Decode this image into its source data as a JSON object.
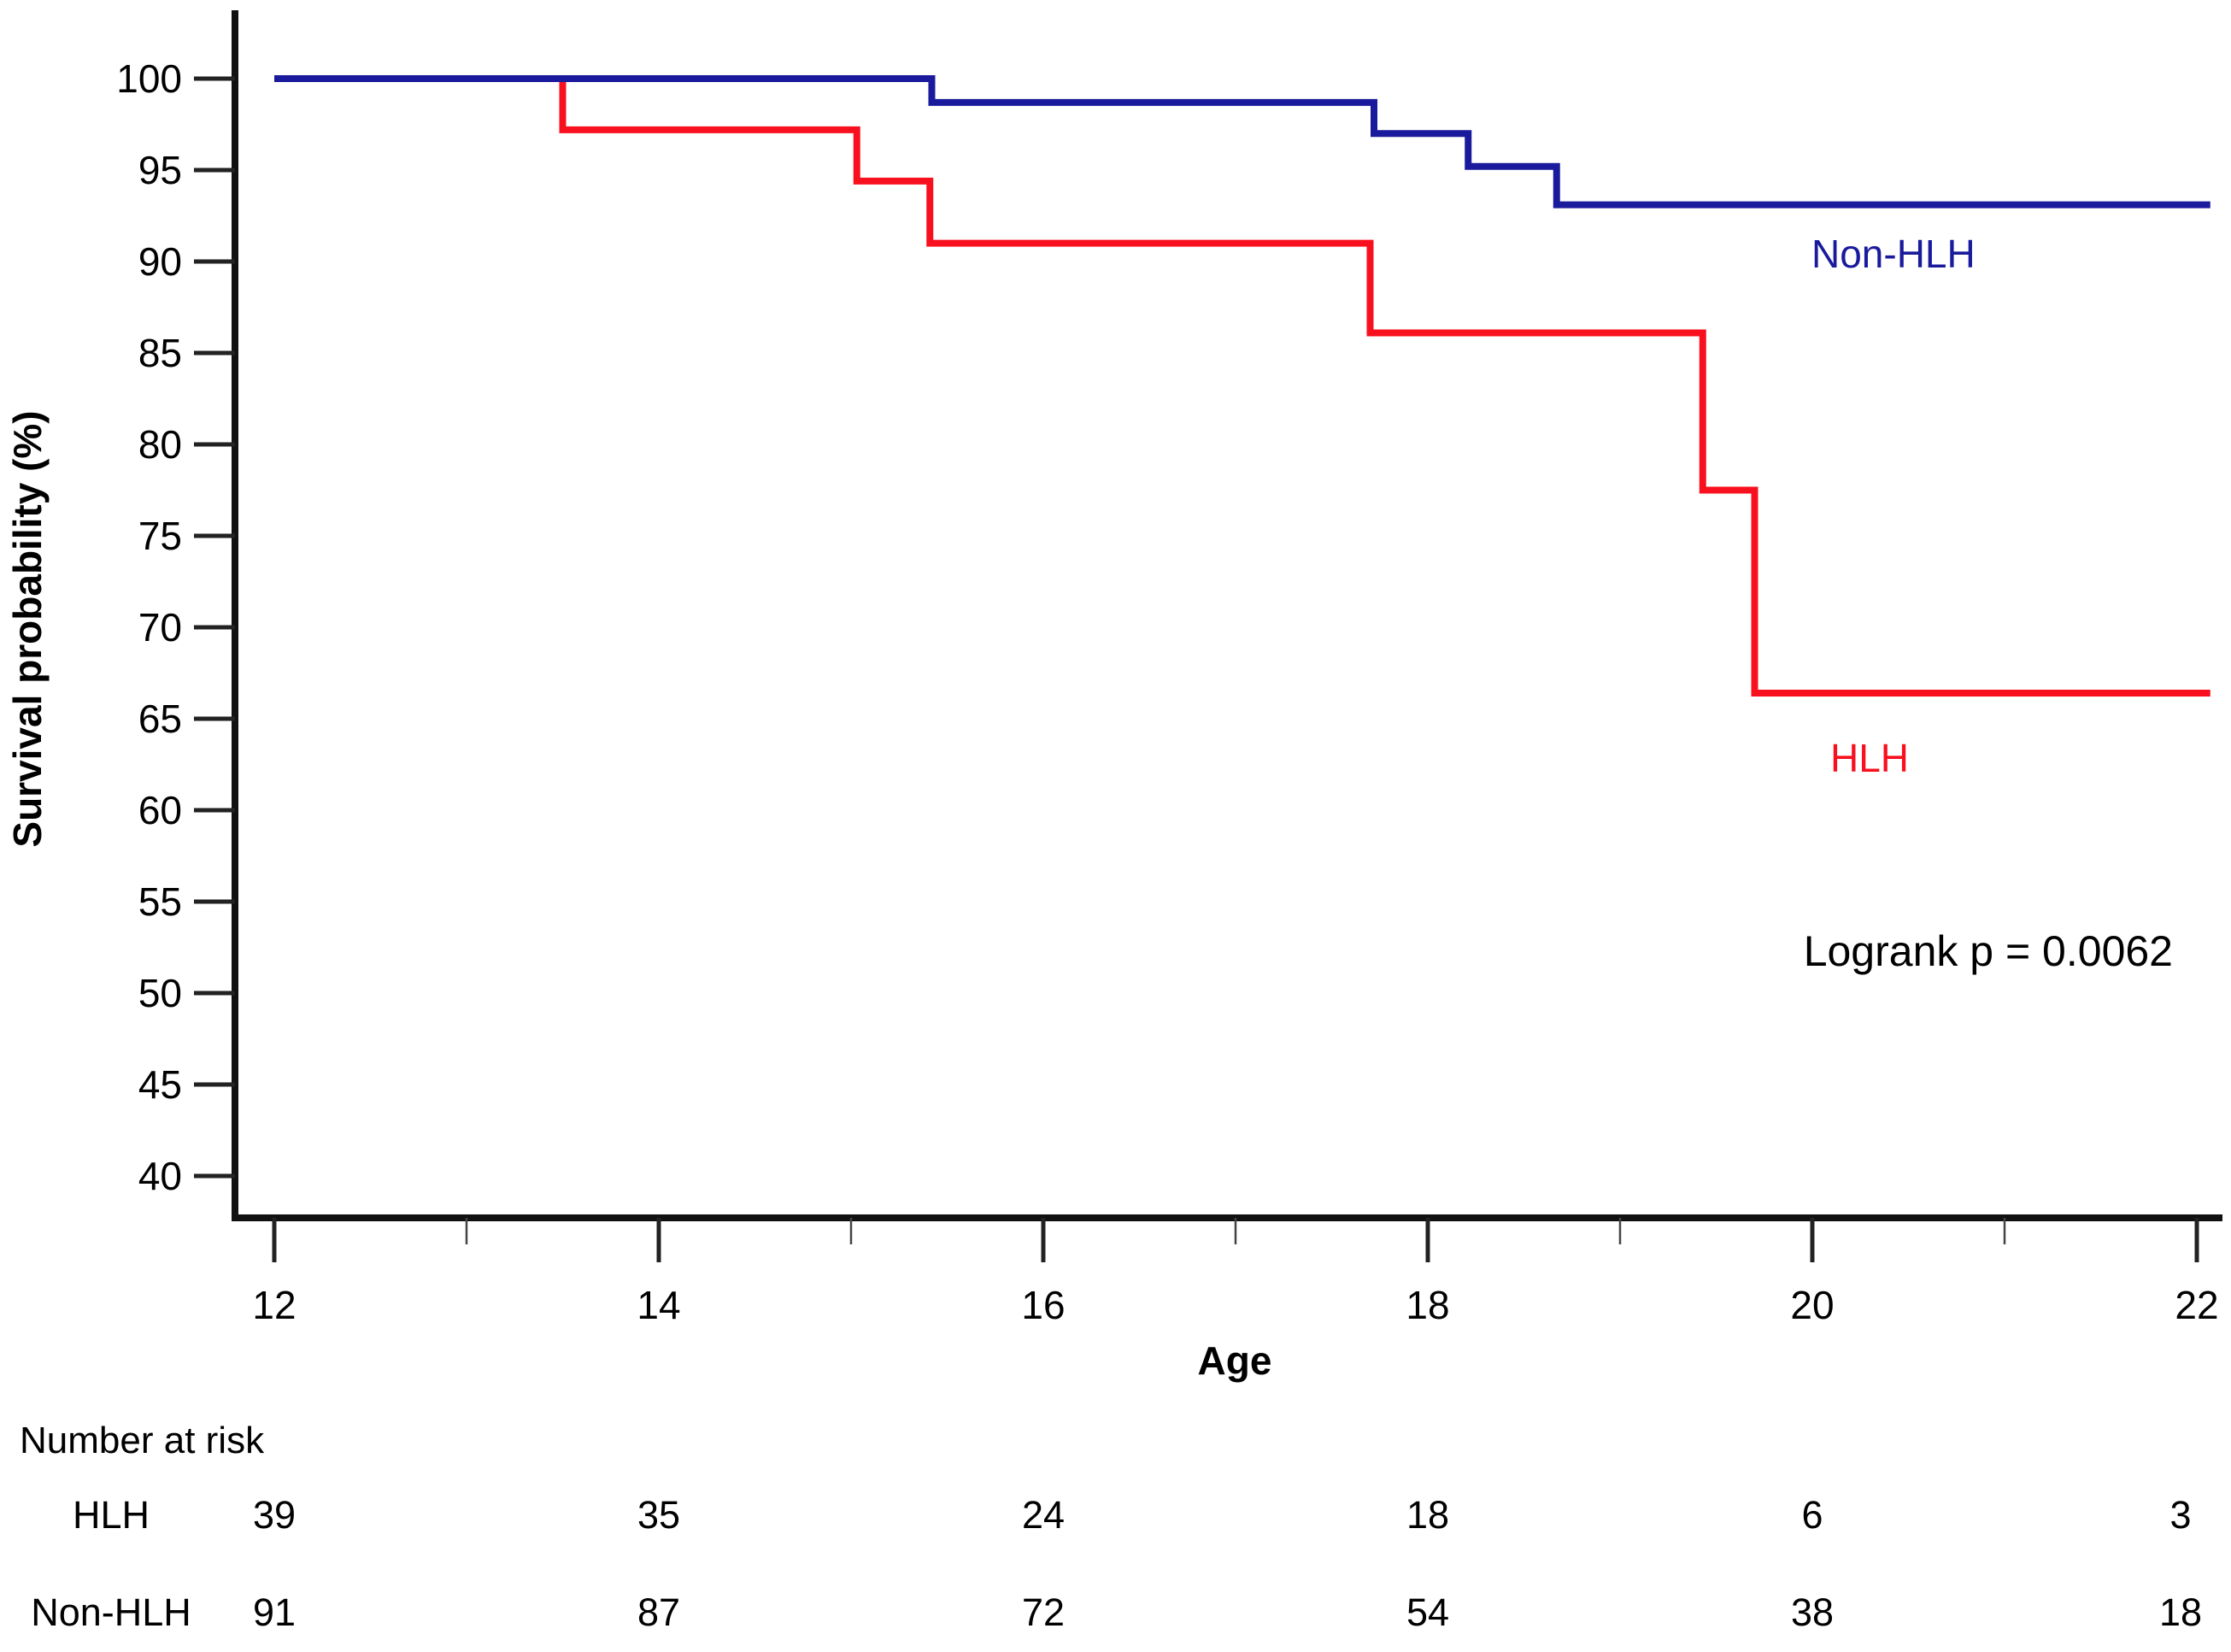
{
  "chart_data": {
    "type": "line",
    "subtype": "kaplan-meier-step",
    "title": "",
    "xlabel": "Age",
    "ylabel": "Survival probability (%)",
    "xlim": [
      12,
      22
    ],
    "ylim": [
      40,
      100
    ],
    "grid": false,
    "x_ticks_major": [
      12,
      14,
      16,
      18,
      20,
      22
    ],
    "x_ticks_minor": [
      13,
      15,
      17,
      19,
      21
    ],
    "y_ticks": [
      100,
      95,
      90,
      85,
      80,
      75,
      70,
      65,
      60,
      55,
      50,
      45,
      40
    ],
    "annotation": "Logrank p = 0.0062",
    "x_end": 22.07,
    "series": [
      {
        "name": "HLH",
        "color": "#f8101e",
        "steps": [
          [
            12,
            100
          ],
          [
            13.5,
            97.2
          ],
          [
            15.03,
            94.4
          ],
          [
            15.41,
            91.0
          ],
          [
            17.7,
            86.1
          ],
          [
            19.43,
            77.5
          ],
          [
            19.7,
            66.4
          ]
        ]
      },
      {
        "name": "Non-HLH",
        "color": "#1a1a9c",
        "steps": [
          [
            12,
            100
          ],
          [
            15.42,
            98.7
          ],
          [
            17.72,
            97.0
          ],
          [
            18.21,
            95.2
          ],
          [
            18.67,
            93.1
          ]
        ]
      }
    ],
    "number_at_risk": {
      "title": "Number at risk",
      "ages": [
        12,
        14,
        16,
        18,
        20,
        22
      ],
      "rows": [
        {
          "label": "HLH",
          "values": [
            39,
            35,
            24,
            18,
            6,
            3
          ]
        },
        {
          "label": "Non-HLH",
          "values": [
            91,
            87,
            72,
            54,
            38,
            18
          ]
        }
      ]
    },
    "colors": {
      "hlh": "#f8101e",
      "non_hlh": "#1a1a9c",
      "axis": "#111111",
      "text": "#000000"
    }
  }
}
